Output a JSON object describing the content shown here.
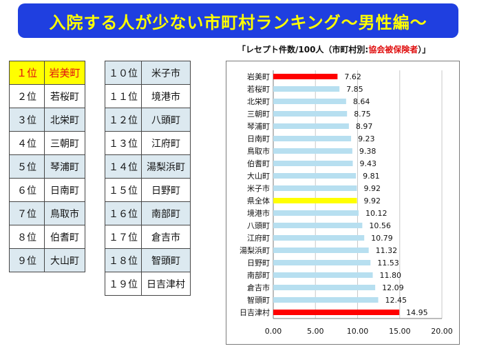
{
  "banner": {
    "title": "入院する人が少ない市町村ランキング～男性編～"
  },
  "ranking": {
    "left": [
      {
        "rank": "１位",
        "name": "岩美町"
      },
      {
        "rank": "２位",
        "name": "若桜町"
      },
      {
        "rank": "３位",
        "name": "北栄町"
      },
      {
        "rank": "４位",
        "name": "三朝町"
      },
      {
        "rank": "５位",
        "name": "琴浦町"
      },
      {
        "rank": "６位",
        "name": "日南町"
      },
      {
        "rank": "７位",
        "name": "鳥取市"
      },
      {
        "rank": "８位",
        "name": "伯耆町"
      },
      {
        "rank": "９位",
        "name": "大山町"
      }
    ],
    "right": [
      {
        "rank": "１０位",
        "name": "米子市"
      },
      {
        "rank": "１１位",
        "name": "境港市"
      },
      {
        "rank": "１２位",
        "name": "八頭町"
      },
      {
        "rank": "１３位",
        "name": "江府町"
      },
      {
        "rank": "１４位",
        "name": "湯梨浜町"
      },
      {
        "rank": "１５位",
        "name": "日野町"
      },
      {
        "rank": "１６位",
        "name": "南部町"
      },
      {
        "rank": "１７位",
        "name": "倉吉市"
      },
      {
        "rank": "１８位",
        "name": "智頭町"
      },
      {
        "rank": "１９位",
        "name": "日吉津村"
      }
    ]
  },
  "chart_title": {
    "prefix": "「レセプト件数/100人（市町村別:",
    "highlight": "協会被保険者",
    "suffix": "）」"
  },
  "chart_data": {
    "type": "bar",
    "orientation": "horizontal",
    "categories": [
      "岩美町",
      "若桜町",
      "北栄町",
      "三朝町",
      "琴浦町",
      "日南町",
      "鳥取市",
      "伯耆町",
      "大山町",
      "米子市",
      "県全体",
      "境港市",
      "八頭町",
      "江府町",
      "湯梨浜町",
      "日野町",
      "南部町",
      "倉吉市",
      "智頭町",
      "日吉津村"
    ],
    "values": [
      7.62,
      7.85,
      8.64,
      8.75,
      8.97,
      9.23,
      9.38,
      9.43,
      9.81,
      9.92,
      9.92,
      10.12,
      10.56,
      10.79,
      11.32,
      11.53,
      11.8,
      12.09,
      12.45,
      14.95
    ],
    "value_labels": [
      "7.62",
      "7.85",
      "8.64",
      "8.75",
      "8.97",
      "9.23",
      "9.38",
      "9.43",
      "9.81",
      "9.92",
      "9.92",
      "10.12",
      "10.56",
      "10.79",
      "11.32",
      "11.53",
      "11.80",
      "12.09",
      "12.45",
      "14.95"
    ],
    "bar_colors": [
      "#ff0000",
      "#b7dff0",
      "#b7dff0",
      "#b7dff0",
      "#b7dff0",
      "#b7dff0",
      "#b7dff0",
      "#b7dff0",
      "#b7dff0",
      "#b7dff0",
      "#ffff00",
      "#b7dff0",
      "#b7dff0",
      "#b7dff0",
      "#b7dff0",
      "#b7dff0",
      "#b7dff0",
      "#b7dff0",
      "#b7dff0",
      "#ff0000"
    ],
    "xlim": [
      0,
      20
    ],
    "xticks": [
      "0.00",
      "5.00",
      "10.00",
      "15.00",
      "20.00"
    ],
    "grid": true
  }
}
